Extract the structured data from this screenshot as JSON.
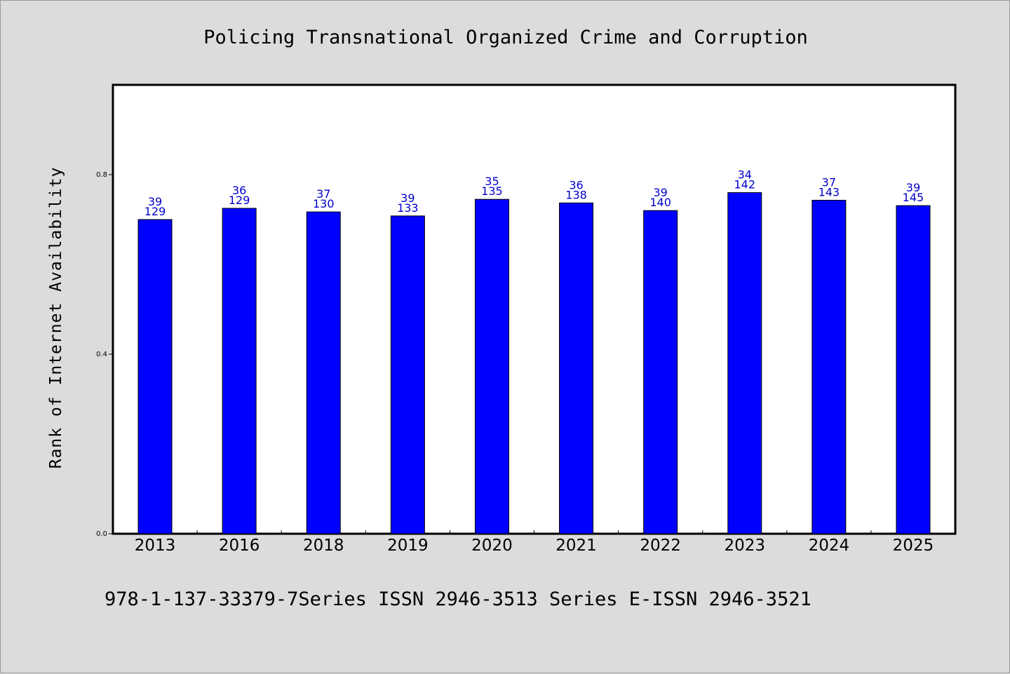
{
  "chart_data": {
    "type": "bar",
    "title": "Policing Transnational Organized Crime and Corruption",
    "ylabel": "Rank of Internet Availability",
    "xlabel": "",
    "ylim": [
      0,
      1.0
    ],
    "yticks": [
      0.0,
      0.4,
      0.8
    ],
    "ytick_labels": [
      "0.0",
      "0.4",
      "0.8"
    ],
    "grid": false,
    "categories": [
      "2013",
      "2016",
      "2018",
      "2019",
      "2020",
      "2021",
      "2022",
      "2023",
      "2024",
      "2025"
    ],
    "values": [
      0.7,
      0.725,
      0.717,
      0.708,
      0.745,
      0.737,
      0.72,
      0.76,
      0.743,
      0.731
    ],
    "label_top": [
      "39",
      "36",
      "37",
      "39",
      "35",
      "36",
      "39",
      "34",
      "37",
      "39"
    ],
    "label_bottom": [
      "129",
      "129",
      "130",
      "133",
      "135",
      "138",
      "140",
      "142",
      "143",
      "145"
    ],
    "bar_color": "#0000ff",
    "label_color": "#0000cc"
  },
  "footer": {
    "text": "978-1-137-33379-7Series ISSN 2946-3513 Series E-ISSN 2946-3521"
  }
}
